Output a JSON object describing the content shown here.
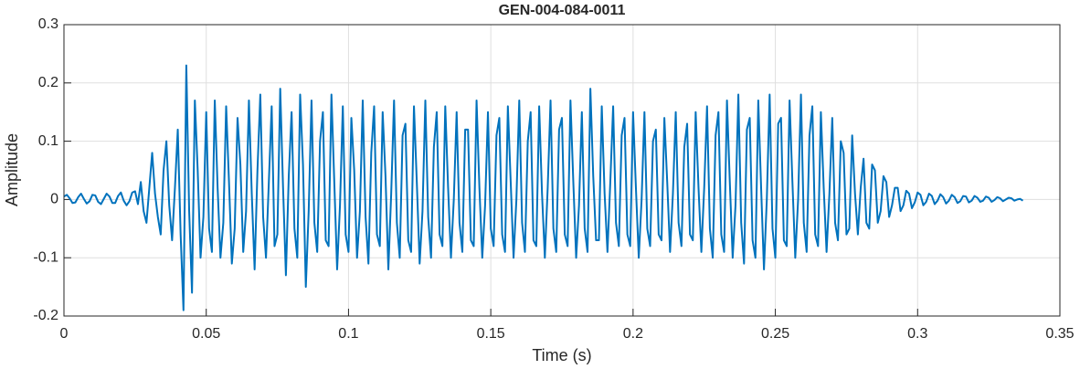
{
  "chart_data": {
    "type": "line",
    "title": "GEN-004-084-0011",
    "x_label": "Time (s)",
    "y_label": "Amplitude",
    "xlim": [
      0,
      0.35
    ],
    "xticks": [
      0,
      0.05,
      0.1,
      0.15,
      0.2,
      0.25,
      0.3,
      0.35
    ],
    "ylim": [
      -0.2,
      0.3
    ],
    "yticks": [
      -0.2,
      -0.1,
      0,
      0.1,
      0.2,
      0.3
    ],
    "grid": true,
    "series": [
      {
        "color": "#0072bd",
        "x": [
          0,
          0.001,
          0.002,
          0.003,
          0.004,
          0.005,
          0.006,
          0.007,
          0.008,
          0.009,
          0.01,
          0.011,
          0.012,
          0.013,
          0.014,
          0.015,
          0.016,
          0.017,
          0.018,
          0.019,
          0.02,
          0.021,
          0.022,
          0.023,
          0.024,
          0.025,
          0.026,
          0.027,
          0.028,
          0.029,
          0.03,
          0.031,
          0.032,
          0.033,
          0.034,
          0.035,
          0.036,
          0.037,
          0.038,
          0.039,
          0.04,
          0.041,
          0.042,
          0.043,
          0.044,
          0.045,
          0.046,
          0.047,
          0.048,
          0.049,
          0.05,
          0.051,
          0.052,
          0.053,
          0.054,
          0.055,
          0.056,
          0.057,
          0.058,
          0.059,
          0.06,
          0.061,
          0.062,
          0.063,
          0.064,
          0.065,
          0.066,
          0.067,
          0.068,
          0.069,
          0.07,
          0.071,
          0.072,
          0.073,
          0.074,
          0.075,
          0.076,
          0.077,
          0.078,
          0.079,
          0.08,
          0.081,
          0.082,
          0.083,
          0.084,
          0.085,
          0.086,
          0.087,
          0.088,
          0.089,
          0.09,
          0.091,
          0.092,
          0.093,
          0.094,
          0.095,
          0.096,
          0.097,
          0.098,
          0.099,
          0.1,
          0.101,
          0.102,
          0.103,
          0.104,
          0.105,
          0.106,
          0.107,
          0.108,
          0.109,
          0.11,
          0.111,
          0.112,
          0.113,
          0.114,
          0.115,
          0.116,
          0.117,
          0.118,
          0.119,
          0.12,
          0.121,
          0.122,
          0.123,
          0.124,
          0.125,
          0.126,
          0.127,
          0.128,
          0.129,
          0.13,
          0.131,
          0.132,
          0.133,
          0.134,
          0.135,
          0.136,
          0.137,
          0.138,
          0.139,
          0.14,
          0.141,
          0.142,
          0.143,
          0.144,
          0.145,
          0.146,
          0.147,
          0.148,
          0.149,
          0.15,
          0.151,
          0.152,
          0.153,
          0.154,
          0.155,
          0.156,
          0.157,
          0.158,
          0.159,
          0.16,
          0.161,
          0.162,
          0.163,
          0.164,
          0.165,
          0.166,
          0.167,
          0.168,
          0.169,
          0.17,
          0.171,
          0.172,
          0.173,
          0.174,
          0.175,
          0.176,
          0.177,
          0.178,
          0.179,
          0.18,
          0.181,
          0.182,
          0.183,
          0.184,
          0.185,
          0.186,
          0.187,
          0.188,
          0.189,
          0.19,
          0.191,
          0.192,
          0.193,
          0.194,
          0.195,
          0.196,
          0.197,
          0.198,
          0.199,
          0.2,
          0.201,
          0.202,
          0.203,
          0.204,
          0.205,
          0.206,
          0.207,
          0.208,
          0.209,
          0.21,
          0.211,
          0.212,
          0.213,
          0.214,
          0.215,
          0.216,
          0.217,
          0.218,
          0.219,
          0.22,
          0.221,
          0.222,
          0.223,
          0.224,
          0.225,
          0.226,
          0.227,
          0.228,
          0.229,
          0.23,
          0.231,
          0.232,
          0.233,
          0.234,
          0.235,
          0.236,
          0.237,
          0.238,
          0.239,
          0.24,
          0.241,
          0.242,
          0.243,
          0.244,
          0.245,
          0.246,
          0.247,
          0.248,
          0.249,
          0.25,
          0.251,
          0.252,
          0.253,
          0.254,
          0.255,
          0.256,
          0.257,
          0.258,
          0.259,
          0.26,
          0.261,
          0.262,
          0.263,
          0.264,
          0.265,
          0.266,
          0.267,
          0.268,
          0.269,
          0.27,
          0.271,
          0.272,
          0.273,
          0.274,
          0.275,
          0.276,
          0.277,
          0.278,
          0.279,
          0.28,
          0.281,
          0.282,
          0.283,
          0.284,
          0.285,
          0.286,
          0.287,
          0.288,
          0.289,
          0.29,
          0.291,
          0.292,
          0.293,
          0.294,
          0.295,
          0.296,
          0.297,
          0.298,
          0.299,
          0.3,
          0.301,
          0.302,
          0.303,
          0.304,
          0.305,
          0.306,
          0.307,
          0.308,
          0.309,
          0.31,
          0.311,
          0.312,
          0.313,
          0.314,
          0.315,
          0.316,
          0.317,
          0.318,
          0.319,
          0.32,
          0.321,
          0.322,
          0.323,
          0.324,
          0.325,
          0.326,
          0.327,
          0.328,
          0.329,
          0.33,
          0.331,
          0.332,
          0.333,
          0.334,
          0.335,
          0.336,
          0.337
        ],
        "values": [
          0.005,
          0.008,
          0.002,
          -0.006,
          -0.005,
          0.004,
          0.01,
          0.001,
          -0.007,
          -0.003,
          0.008,
          0.007,
          -0.004,
          -0.008,
          0.001,
          0.01,
          0.005,
          -0.006,
          -0.006,
          0.006,
          0.012,
          -0.002,
          -0.01,
          -0.003,
          0.012,
          0.014,
          -0.008,
          0.03,
          -0.02,
          -0.04,
          0.02,
          0.08,
          0.01,
          -0.03,
          -0.06,
          0.05,
          0.1,
          -0.01,
          -0.07,
          0.02,
          0.12,
          -0.06,
          -0.19,
          0.23,
          -0.02,
          -0.16,
          0.17,
          0.05,
          -0.1,
          -0.03,
          0.15,
          -0.05,
          -0.09,
          0.17,
          0.02,
          -0.1,
          -0.04,
          0.16,
          0.03,
          -0.11,
          -0.05,
          0.14,
          0.06,
          -0.09,
          -0.02,
          0.17,
          0.01,
          -0.12,
          0.05,
          0.18,
          -0.03,
          -0.1,
          0.03,
          0.16,
          -0.08,
          -0.06,
          0.19,
          0.02,
          -0.13,
          0.04,
          0.15,
          -0.05,
          -0.1,
          0.18,
          0.06,
          -0.15,
          -0.02,
          0.17,
          -0.04,
          -0.09,
          0.1,
          0.15,
          -0.07,
          -0.08,
          0.18,
          0.03,
          -0.12,
          -0.01,
          0.16,
          -0.06,
          -0.09,
          0.14,
          0.05,
          -0.1,
          -0.02,
          0.17,
          -0.03,
          -0.11,
          0.08,
          0.16,
          -0.06,
          -0.08,
          0.15,
          0.04,
          -0.12,
          0.01,
          0.17,
          -0.04,
          -0.1,
          0.11,
          0.13,
          -0.07,
          -0.09,
          0.16,
          0.03,
          -0.11,
          -0.02,
          0.17,
          -0.03,
          -0.1,
          0.09,
          0.15,
          -0.06,
          -0.08,
          0.16,
          0.02,
          -0.1,
          0.0,
          0.15,
          -0.04,
          -0.09,
          0.12,
          0.12,
          -0.07,
          -0.08,
          0.17,
          0.02,
          -0.1,
          -0.01,
          0.15,
          -0.05,
          -0.08,
          0.11,
          0.14,
          -0.06,
          -0.09,
          0.16,
          0.03,
          -0.1,
          0.0,
          0.17,
          -0.04,
          -0.09,
          0.1,
          0.15,
          -0.07,
          -0.08,
          0.16,
          0.01,
          -0.1,
          0.02,
          0.17,
          -0.05,
          -0.09,
          0.12,
          0.14,
          -0.06,
          -0.08,
          0.17,
          0.03,
          -0.1,
          -0.01,
          0.15,
          -0.05,
          -0.09,
          0.19,
          0.04,
          -0.07,
          -0.07,
          0.16,
          0.01,
          -0.09,
          0.03,
          0.16,
          -0.04,
          -0.08,
          0.11,
          0.14,
          -0.06,
          -0.08,
          0.15,
          0.02,
          -0.1,
          0.0,
          0.15,
          -0.05,
          -0.08,
          0.1,
          0.12,
          -0.06,
          -0.07,
          0.14,
          0.03,
          -0.09,
          0.01,
          0.15,
          -0.04,
          -0.08,
          0.09,
          0.13,
          -0.06,
          -0.07,
          0.15,
          0.02,
          -0.09,
          0.02,
          0.16,
          -0.05,
          -0.1,
          0.11,
          0.15,
          -0.06,
          -0.09,
          0.17,
          0.03,
          -0.1,
          -0.01,
          0.18,
          -0.04,
          -0.11,
          0.12,
          0.14,
          -0.07,
          -0.1,
          0.17,
          0.02,
          -0.12,
          0.0,
          0.18,
          -0.05,
          -0.1,
          0.13,
          0.14,
          -0.07,
          -0.08,
          0.17,
          0.03,
          -0.1,
          0.0,
          0.18,
          -0.04,
          -0.09,
          0.11,
          0.16,
          -0.06,
          -0.08,
          0.15,
          0.02,
          -0.09,
          0.01,
          0.14,
          -0.04,
          -0.07,
          0.1,
          0.08,
          -0.06,
          -0.05,
          0.11,
          0.01,
          -0.06,
          0.02,
          0.07,
          -0.04,
          -0.05,
          0.06,
          0.05,
          -0.04,
          -0.02,
          0.04,
          0.03,
          -0.03,
          -0.01,
          0.02,
          0.02,
          -0.02,
          -0.01,
          0.015,
          0.01,
          -0.015,
          -0.005,
          0.012,
          0.008,
          -0.01,
          -0.004,
          0.01,
          0.006,
          -0.008,
          -0.002,
          0.009,
          0.004,
          -0.007,
          -0.002,
          0.008,
          0.004,
          -0.006,
          -0.003,
          0.006,
          0.005,
          -0.005,
          -0.002,
          0.006,
          0.003,
          -0.004,
          -0.002,
          0.005,
          0.003,
          -0.004,
          -0.001,
          0.004,
          0.002,
          -0.003,
          0.0,
          0.003,
          0.002,
          -0.002,
          0.0,
          0.001,
          -0.002
        ]
      }
    ]
  }
}
